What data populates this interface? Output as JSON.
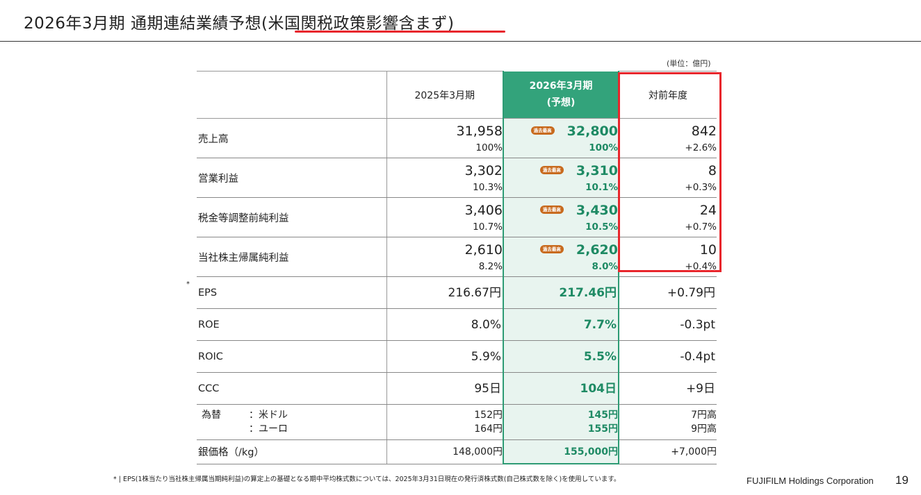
{
  "header": {
    "title_main": "2026年3月期 通期連結業績予想(",
    "title_highlight": "米国関税政策影響含まず",
    "title_close": ")"
  },
  "unit": "(単位：億円)",
  "table": {
    "col_prev": "2025年3月期",
    "col_cur_line1": "2026年3月期",
    "col_cur_line2": "(予想)",
    "col_diff": "対前年度",
    "badge_text": "過去最高",
    "income_rows": [
      {
        "label": "売上高",
        "prev": "31,958",
        "prev_pct": "100%",
        "cur": "32,800",
        "cur_pct": "100%",
        "diff": "842",
        "diff_pct": "+2.6%"
      },
      {
        "label": "営業利益",
        "prev": "3,302",
        "prev_pct": "10.3%",
        "cur": "3,310",
        "cur_pct": "10.1%",
        "diff": "8",
        "diff_pct": "+0.3%"
      },
      {
        "label": "税金等調整前純利益",
        "prev": "3,406",
        "prev_pct": "10.7%",
        "cur": "3,430",
        "cur_pct": "10.5%",
        "diff": "24",
        "diff_pct": "+0.7%"
      },
      {
        "label": "当社株主帰属純利益",
        "prev": "2,610",
        "prev_pct": "8.2%",
        "cur": "2,620",
        "cur_pct": "8.0%",
        "diff": "10",
        "diff_pct": "+0.4%"
      }
    ],
    "metric_rows": [
      {
        "label": "EPS",
        "prev": "216.67円",
        "cur": "217.46円",
        "diff": "+0.79円"
      },
      {
        "label": "ROE",
        "prev": "8.0%",
        "cur": "7.7%",
        "diff": "-0.3pt"
      },
      {
        "label": "ROIC",
        "prev": "5.9%",
        "cur": "5.5%",
        "diff": "-0.4pt"
      },
      {
        "label": "CCC",
        "prev": "95日",
        "cur": "104日",
        "diff": "+9日"
      }
    ],
    "fx": {
      "label": "為替",
      "usd_label": "：米ドル",
      "eur_label": "：ユーロ",
      "usd_prev": "152円",
      "usd_cur": "145円",
      "usd_diff": "7円高",
      "eur_prev": "164円",
      "eur_cur": "155円",
      "eur_diff": "9円高"
    },
    "silver": {
      "label": "銀価格（/kg）",
      "prev": "148,000円",
      "cur": "155,000円",
      "diff": "+7,000円"
    },
    "eps_mark": "*"
  },
  "footnote": "* | EPS(1株当たり当社株主帰属当期純利益)の算定上の基礎となる期中平均株式数については、2025年3月31日現在の発行済株式数(自己株式数を除く)を使用しています。",
  "footer": {
    "company": "FUJIFILM Holdings Corporation",
    "page": "19"
  },
  "colors": {
    "accent_green": "#33a37b",
    "highlight_red": "#e8262c",
    "badge_orange": "#c86a1e"
  }
}
